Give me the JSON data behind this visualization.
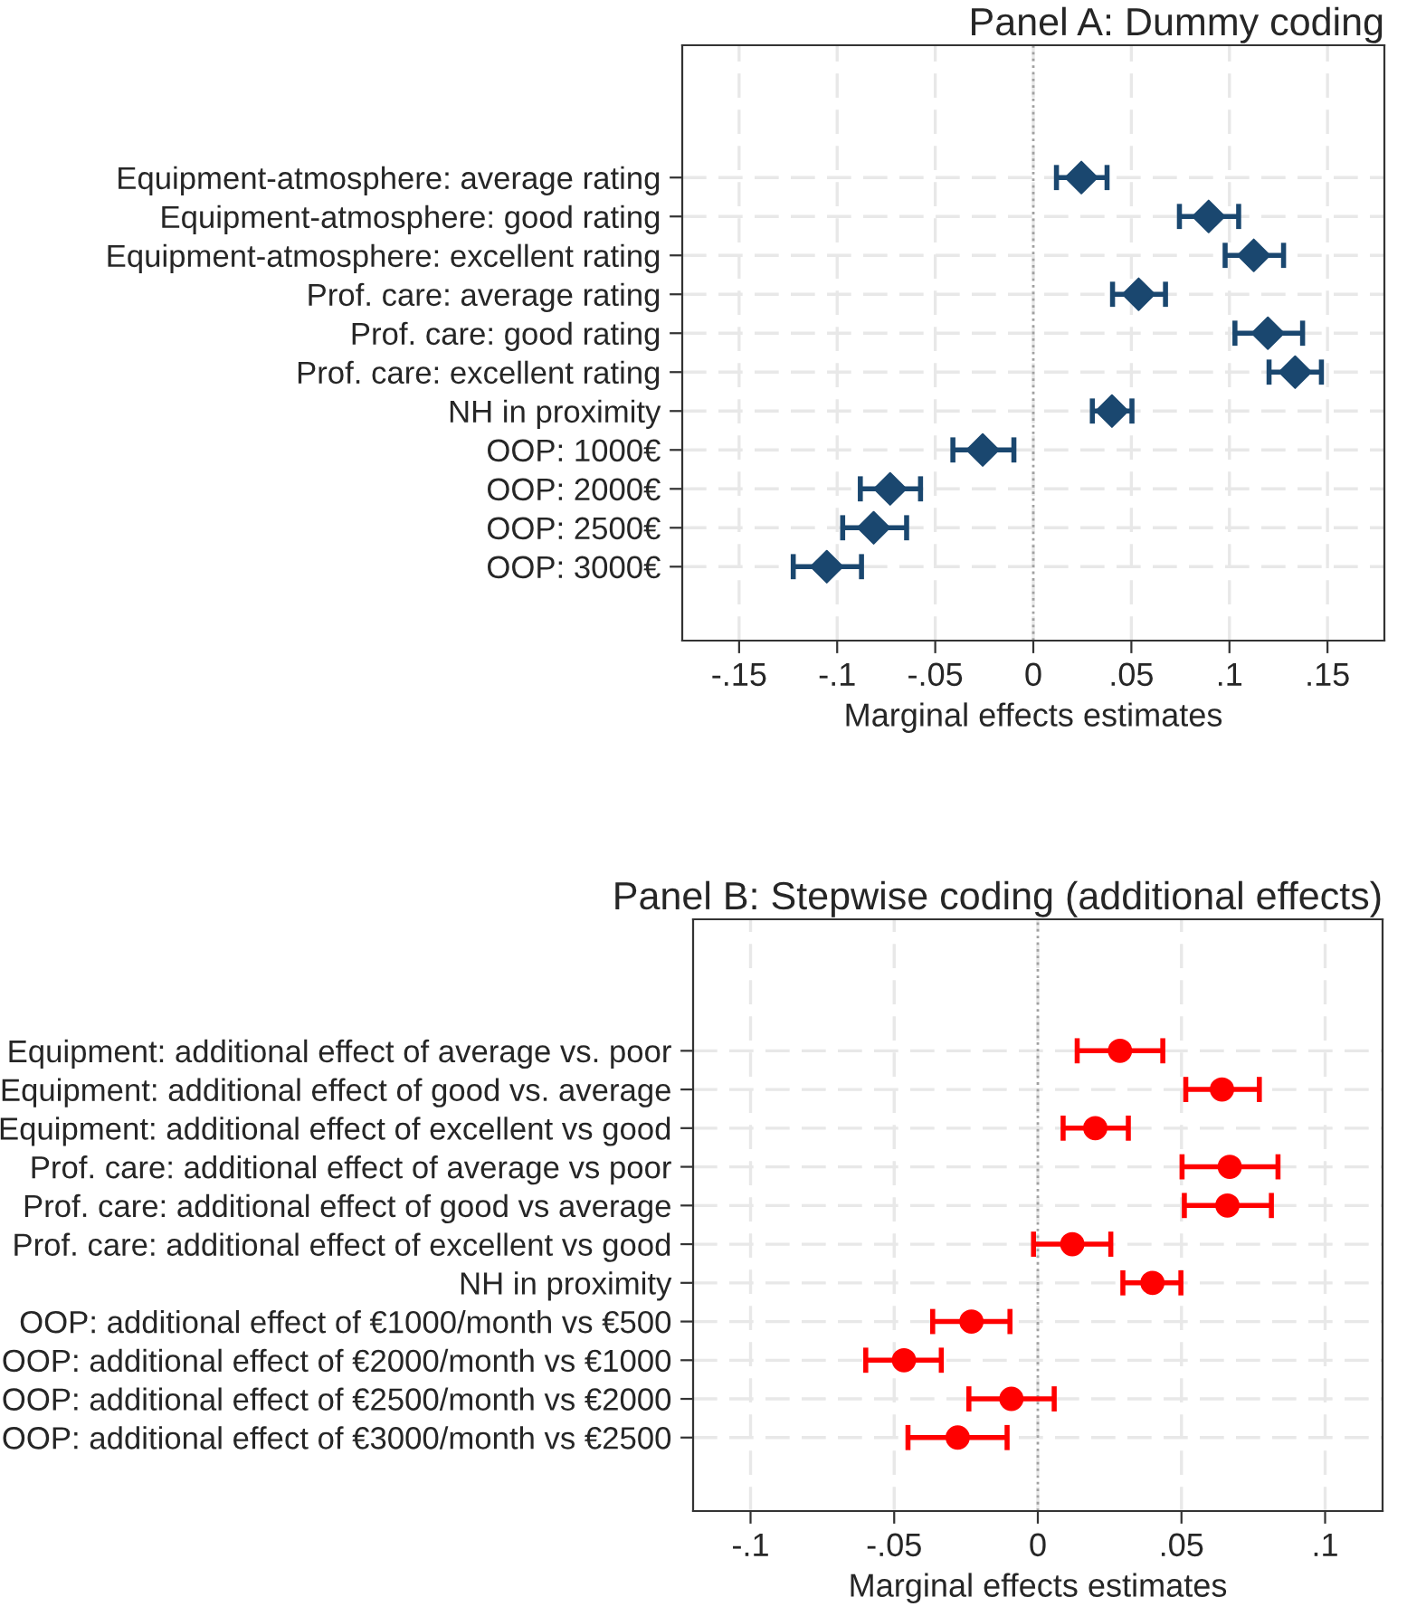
{
  "chart_data": [
    {
      "type": "scatter",
      "title": "Panel A: Dummy coding",
      "xlabel": "Marginal effects estimates",
      "orientation": "horizontal",
      "marker": "diamond",
      "grid": true,
      "categories": [
        "Equipment-atmosphere: average rating",
        "Equipment-atmosphere: good rating",
        "Equipment-atmosphere: excellent rating",
        "Prof. care: average rating",
        "Prof. care: good rating",
        "Prof. care: excellent rating",
        "NH in proximity",
        "OOP: 1000€",
        "OOP: 2000€",
        "OOP: 2500€",
        "OOP: 3000€"
      ],
      "series": [
        {
          "color": "#1a476f",
          "values": [
            0.0245,
            0.0894,
            0.1124,
            0.0537,
            0.1196,
            0.1335,
            0.0401,
            -0.0258,
            -0.073,
            -0.0814,
            -0.1053
          ],
          "errors": [
            [
              0.0118,
              0.0376
            ],
            [
              0.0745,
              0.1047
            ],
            [
              0.0978,
              0.1276
            ],
            [
              0.0404,
              0.0674
            ],
            [
              0.1028,
              0.1373
            ],
            [
              0.1202,
              0.1469
            ],
            [
              0.0301,
              0.0503
            ],
            [
              -0.041,
              -0.0099
            ],
            [
              -0.0882,
              -0.0575
            ],
            [
              -0.0972,
              -0.0646
            ],
            [
              -0.1224,
              -0.0876
            ]
          ]
        }
      ],
      "xlim": [
        -0.179,
        0.179
      ],
      "xticks": [
        {
          "value": -0.15,
          "label": "-.15"
        },
        {
          "value": -0.1,
          "label": "-.1"
        },
        {
          "value": -0.05,
          "label": "-.05"
        },
        0,
        {
          "value": 0.05,
          "label": ".05"
        },
        {
          "value": 0.1,
          "label": ".1"
        },
        {
          "value": 0.15,
          "label": ".15"
        }
      ],
      "ref_lines": [
        {
          "axis": "x",
          "value": 0,
          "color": "#a0a0a0",
          "line_style": "dotted"
        }
      ]
    },
    {
      "type": "scatter",
      "title": "Panel B: Stepwise coding (additional effects)",
      "xlabel": "Marginal effects estimates",
      "orientation": "horizontal",
      "marker": "circle",
      "grid": true,
      "categories": [
        "Equipment: additional effect of average vs. poor",
        "Equipment: additional effect of good vs. average",
        "Equipment: additional effect of excellent vs good",
        "Prof. care: additional effect of average vs poor",
        "Prof. care: additional effect of good vs average",
        "Prof. care: additional effect of excellent vs good",
        "NH in proximity",
        "OOP: additional effect of €1000/month vs €500",
        "OOP: additional effect of €2000/month vs €1000",
        "OOP: additional effect of €2500/month vs €2000",
        "OOP: additional effect of €3000/month vs €2500"
      ],
      "series": [
        {
          "color": "#ff0000",
          "values": [
            0.0286,
            0.0641,
            0.02,
            0.0668,
            0.066,
            0.012,
            0.0399,
            -0.0231,
            -0.0466,
            -0.0092,
            -0.0279
          ],
          "errors": [
            [
              0.0137,
              0.0435
            ],
            [
              0.0515,
              0.0771
            ],
            [
              0.0088,
              0.0315
            ],
            [
              0.0502,
              0.0836
            ],
            [
              0.051,
              0.0813
            ],
            [
              -0.0015,
              0.0254
            ],
            [
              0.0296,
              0.0498
            ],
            [
              -0.0366,
              -0.0097
            ],
            [
              -0.0599,
              -0.0336
            ],
            [
              -0.024,
              0.0057
            ],
            [
              -0.0452,
              -0.0107
            ]
          ]
        }
      ],
      "xlim": [
        -0.12,
        0.12
      ],
      "xticks": [
        {
          "value": -0.1,
          "label": "-.1"
        },
        {
          "value": -0.05,
          "label": "-.05"
        },
        0,
        {
          "value": 0.05,
          "label": ".05"
        },
        {
          "value": 0.1,
          "label": ".1"
        }
      ],
      "ref_lines": [
        {
          "axis": "x",
          "value": 0,
          "color": "#a0a0a0",
          "line_style": "dotted"
        }
      ]
    }
  ]
}
